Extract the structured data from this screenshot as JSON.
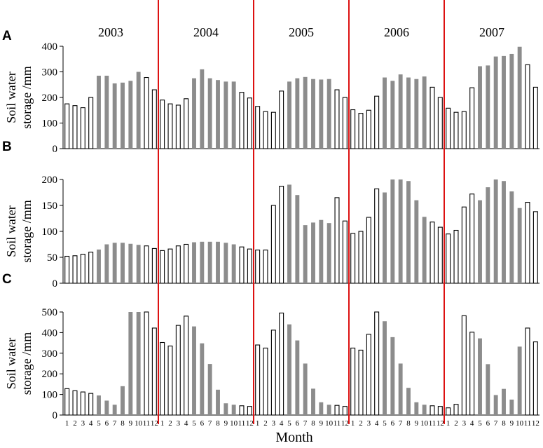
{
  "chart_data": [
    {
      "panel_label": "A",
      "type": "bar",
      "ylabel": [
        "Soil water",
        "storage /mm"
      ],
      "ylim": [
        0,
        400
      ],
      "yticks": [
        0,
        100,
        200,
        300,
        400
      ],
      "years": [
        "2003",
        "2004",
        "2005",
        "2006",
        "2007"
      ],
      "month_ticks": [
        "1",
        "2",
        "3",
        "4",
        "5",
        "6",
        "7",
        "8",
        "9",
        "10",
        "11",
        "12"
      ],
      "values": [
        175,
        168,
        160,
        200,
        285,
        285,
        255,
        258,
        265,
        300,
        278,
        230,
        190,
        175,
        170,
        195,
        275,
        310,
        275,
        268,
        262,
        262,
        220,
        198,
        165,
        145,
        142,
        225,
        262,
        275,
        280,
        272,
        270,
        272,
        230,
        200,
        152,
        138,
        150,
        205,
        278,
        265,
        290,
        278,
        272,
        282,
        240,
        200,
        158,
        142,
        145,
        238,
        322,
        325,
        360,
        362,
        370,
        398,
        328,
        240
      ],
      "bar_fill": [
        "white",
        "white",
        "white",
        "white",
        "gray",
        "gray",
        "gray",
        "gray",
        "gray",
        "gray",
        "white",
        "white",
        "white",
        "white",
        "white",
        "white",
        "gray",
        "gray",
        "gray",
        "gray",
        "gray",
        "gray",
        "white",
        "white",
        "white",
        "white",
        "white",
        "white",
        "gray",
        "gray",
        "gray",
        "gray",
        "gray",
        "gray",
        "white",
        "white",
        "white",
        "white",
        "white",
        "white",
        "gray",
        "gray",
        "gray",
        "gray",
        "gray",
        "gray",
        "white",
        "white",
        "white",
        "white",
        "white",
        "white",
        "gray",
        "gray",
        "gray",
        "gray",
        "gray",
        "gray",
        "white",
        "white"
      ]
    },
    {
      "panel_label": "B",
      "type": "bar",
      "ylabel": [
        "Soil water",
        "storage /mm"
      ],
      "ylim": [
        0,
        200
      ],
      "yticks": [
        0,
        50,
        100,
        150,
        200
      ],
      "years": [
        "2003",
        "2004",
        "2005",
        "2006",
        "2007"
      ],
      "month_ticks": [
        "1",
        "2",
        "3",
        "4",
        "5",
        "6",
        "7",
        "8",
        "9",
        "10",
        "11",
        "12"
      ],
      "values": [
        52,
        53,
        56,
        60,
        65,
        75,
        78,
        78,
        76,
        74,
        72,
        67,
        63,
        66,
        72,
        75,
        79,
        80,
        80,
        80,
        78,
        75,
        70,
        66,
        64,
        64,
        150,
        187,
        190,
        170,
        112,
        117,
        122,
        116,
        165,
        120,
        96,
        100,
        127,
        182,
        175,
        200,
        200,
        197,
        160,
        128,
        118,
        108,
        95,
        102,
        147,
        172,
        160,
        185,
        200,
        197,
        177,
        145,
        156,
        138
      ],
      "bar_fill": [
        "white",
        "white",
        "white",
        "white",
        "gray",
        "gray",
        "gray",
        "gray",
        "gray",
        "gray",
        "white",
        "white",
        "white",
        "white",
        "white",
        "white",
        "gray",
        "gray",
        "gray",
        "gray",
        "gray",
        "gray",
        "white",
        "white",
        "white",
        "white",
        "white",
        "white",
        "gray",
        "gray",
        "gray",
        "gray",
        "gray",
        "gray",
        "white",
        "white",
        "white",
        "white",
        "white",
        "white",
        "gray",
        "gray",
        "gray",
        "gray",
        "gray",
        "gray",
        "white",
        "white",
        "white",
        "white",
        "white",
        "white",
        "gray",
        "gray",
        "gray",
        "gray",
        "gray",
        "gray",
        "white",
        "white"
      ]
    },
    {
      "panel_label": "C",
      "type": "bar",
      "ylabel": [
        "Soil water",
        "storage /mm"
      ],
      "ylim": [
        0,
        500
      ],
      "yticks": [
        0,
        100,
        200,
        300,
        400,
        500
      ],
      "years": [
        "2003",
        "2004",
        "2005",
        "2006",
        "2007"
      ],
      "month_ticks": [
        "1",
        "2",
        "3",
        "4",
        "5",
        "6",
        "7",
        "8",
        "9",
        "10",
        "11",
        "12"
      ],
      "values": [
        128,
        118,
        112,
        105,
        95,
        70,
        50,
        140,
        500,
        500,
        500,
        422,
        352,
        335,
        435,
        480,
        430,
        348,
        248,
        123,
        57,
        50,
        45,
        42,
        340,
        325,
        412,
        495,
        440,
        362,
        250,
        128,
        62,
        50,
        47,
        42,
        325,
        315,
        392,
        500,
        455,
        378,
        250,
        132,
        62,
        50,
        45,
        42,
        35,
        52,
        482,
        402,
        372,
        247,
        97,
        127,
        75,
        332,
        422,
        355
      ],
      "bar_fill": [
        "white",
        "white",
        "white",
        "white",
        "gray",
        "gray",
        "gray",
        "gray",
        "gray",
        "gray",
        "white",
        "white",
        "white",
        "white",
        "white",
        "white",
        "gray",
        "gray",
        "gray",
        "gray",
        "gray",
        "gray",
        "white",
        "white",
        "white",
        "white",
        "white",
        "white",
        "gray",
        "gray",
        "gray",
        "gray",
        "gray",
        "gray",
        "white",
        "white",
        "white",
        "white",
        "white",
        "white",
        "gray",
        "gray",
        "gray",
        "gray",
        "gray",
        "gray",
        "white",
        "white",
        "white",
        "white",
        "white",
        "white",
        "gray",
        "gray",
        "gray",
        "gray",
        "gray",
        "gray",
        "white",
        "white"
      ]
    }
  ],
  "xlabel": "Month",
  "colors": {
    "gray_bar": "#8c8c8c",
    "year_divider": "#dd1111",
    "axis": "#000000"
  }
}
